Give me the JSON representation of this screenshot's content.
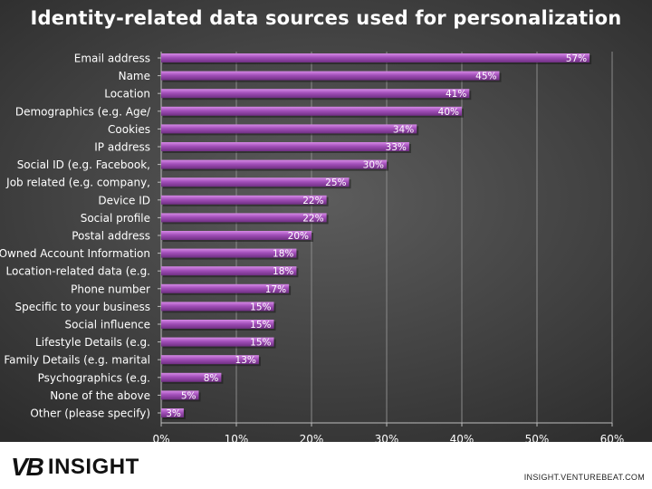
{
  "chart_data": {
    "type": "bar",
    "orientation": "horizontal",
    "title": "Identity-related data sources used for personalization",
    "categories": [
      "Email address",
      "Name",
      "Location",
      "Demographics (e.g. Age/",
      "Cookies",
      "IP address",
      "Social ID (e.g. Facebook,",
      "Job related (e.g. company,",
      "Device ID",
      "Social profile",
      "Postal address",
      "Owned Account Information",
      "Location-related data (e.g.",
      "Phone number",
      "Specific to your business",
      "Social influence",
      "Lifestyle Details (e.g.",
      "Family Details (e.g. marital",
      "Psychographics (e.g.",
      "None of the above",
      "Other (please specify)"
    ],
    "values": [
      57,
      45,
      41,
      40,
      34,
      33,
      30,
      25,
      22,
      22,
      20,
      18,
      18,
      17,
      15,
      15,
      15,
      13,
      8,
      5,
      3
    ],
    "value_labels": [
      "57%",
      "45%",
      "41%",
      "40%",
      "34%",
      "33%",
      "30%",
      "25%",
      "22%",
      "22%",
      "20%",
      "18%",
      "18%",
      "17%",
      "15%",
      "15%",
      "15%",
      "13%",
      "8%",
      "5%",
      "3%"
    ],
    "xlim": [
      0,
      60
    ],
    "xticks": [
      0,
      10,
      20,
      30,
      40,
      50,
      60
    ],
    "xtick_labels": [
      "0%",
      "10%",
      "20%",
      "30%",
      "40%",
      "50%",
      "60%"
    ],
    "grid": true,
    "legend": "none",
    "bar_color": "#a24fb9"
  },
  "footer": {
    "logo_mark": "VB",
    "logo_word": "INSIGHT",
    "source": "INSIGHT.VENTUREBEAT.COM"
  }
}
